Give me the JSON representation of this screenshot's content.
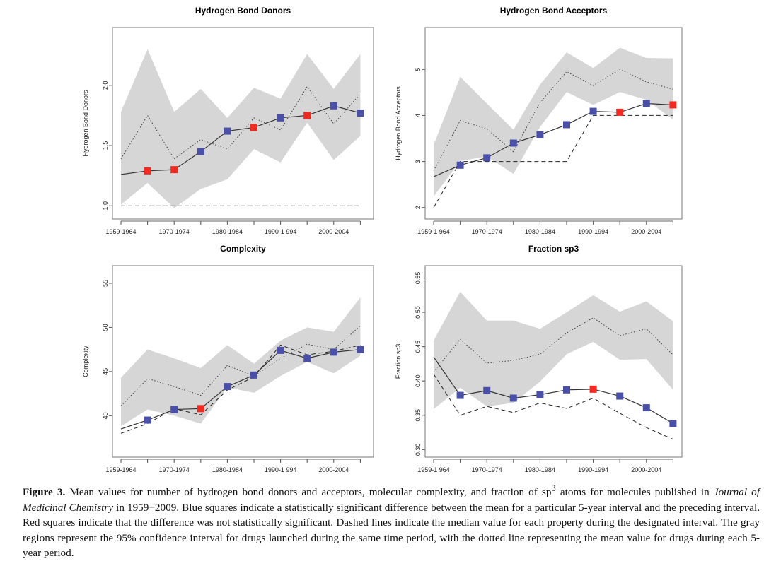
{
  "chart_data": [
    {
      "type": "line",
      "title": "Hydrogen Bond Donors",
      "ylabel": "Hydrogen Bond Donors",
      "x_tick_labels": [
        "1959-1964",
        "",
        "1970-1974",
        "",
        "1980-1984",
        "",
        "1990-1 994",
        "",
        "2000-2004",
        ""
      ],
      "y_ticks": [
        1.0,
        1.5,
        2.0
      ],
      "y_tick_labels": [
        "1.0",
        "1.5",
        "2.0"
      ],
      "ylim": [
        0.89,
        2.48
      ],
      "series": [
        {
          "role": "mean",
          "style": "solid",
          "values": [
            1.26,
            1.29,
            1.3,
            1.45,
            1.62,
            1.65,
            1.73,
            1.75,
            1.83,
            1.77
          ],
          "markers": [
            null,
            "red",
            "red",
            "blue",
            "blue",
            "red",
            "blue",
            "red",
            "blue",
            "blue"
          ]
        },
        {
          "role": "median",
          "style": "dashed",
          "values": [
            1.0,
            1.0,
            1.0,
            1.0,
            1.0,
            1.0,
            1.0,
            1.0,
            1.0,
            1.0
          ]
        },
        {
          "role": "drug-mean",
          "style": "dotted",
          "values": [
            1.39,
            1.75,
            1.39,
            1.55,
            1.47,
            1.73,
            1.63,
            1.99,
            1.68,
            1.93
          ]
        },
        {
          "role": "drug-ci",
          "style": "band",
          "upper": [
            1.78,
            2.3,
            1.78,
            1.97,
            1.73,
            1.98,
            1.89,
            2.26,
            1.97,
            2.26
          ],
          "lower": [
            1.01,
            1.19,
            0.98,
            1.14,
            1.22,
            1.47,
            1.36,
            1.69,
            1.38,
            1.58
          ]
        }
      ]
    },
    {
      "type": "line",
      "title": "Hydrogen Bond Acceptors",
      "ylabel": "Hydrogen Bond Acceptors",
      "x_tick_labels": [
        "1959-1 964",
        "",
        "1970-1974",
        "",
        "1980-1984",
        "",
        "1990-1994",
        "",
        "2000-2004",
        ""
      ],
      "y_ticks": [
        2,
        3,
        4,
        5
      ],
      "y_tick_labels": [
        "2",
        "3",
        "4",
        "5"
      ],
      "ylim": [
        1.75,
        5.91
      ],
      "series": [
        {
          "role": "mean",
          "style": "solid",
          "values": [
            2.67,
            2.92,
            3.08,
            3.4,
            3.58,
            3.8,
            4.09,
            4.07,
            4.26,
            4.23
          ],
          "markers": [
            null,
            "blue",
            "blue",
            "blue",
            "blue",
            "blue",
            "blue",
            "red",
            "blue",
            "red"
          ]
        },
        {
          "role": "median",
          "style": "dashed",
          "values": [
            2,
            3,
            3,
            3,
            3,
            3,
            4,
            4,
            4,
            4
          ]
        },
        {
          "role": "drug-mean",
          "style": "dotted",
          "values": [
            2.8,
            3.89,
            3.71,
            3.21,
            4.28,
            4.95,
            4.65,
            5.0,
            4.73,
            4.57
          ]
        },
        {
          "role": "drug-ci",
          "style": "band",
          "upper": [
            3.36,
            4.84,
            4.26,
            3.69,
            4.67,
            5.37,
            5.03,
            5.47,
            5.25,
            5.24
          ],
          "lower": [
            2.24,
            3.01,
            3.11,
            2.73,
            3.75,
            4.51,
            4.23,
            4.51,
            4.34,
            3.91
          ]
        }
      ]
    },
    {
      "type": "line",
      "title": "Complexity",
      "ylabel": "Complexity",
      "x_tick_labels": [
        "1959-1964",
        "",
        "1970-1974",
        "",
        "1980-1984",
        "",
        "1990-1 994",
        "",
        "2000-2004",
        ""
      ],
      "y_ticks": [
        40,
        45,
        50,
        55
      ],
      "y_tick_labels": [
        "40",
        "45",
        "50",
        "55"
      ],
      "ylim": [
        35.3,
        57.0
      ],
      "series": [
        {
          "role": "mean",
          "style": "solid",
          "values": [
            38.5,
            39.5,
            40.7,
            40.8,
            43.3,
            44.6,
            47.4,
            46.5,
            47.2,
            47.5
          ],
          "markers": [
            null,
            "blue",
            "blue",
            "red",
            "blue",
            "blue",
            "blue",
            "blue",
            "blue",
            "blue"
          ]
        },
        {
          "role": "median",
          "style": "dashed",
          "values": [
            38.0,
            39.1,
            40.8,
            40.1,
            42.9,
            44.4,
            48.0,
            46.9,
            47.3,
            48.0
          ]
        },
        {
          "role": "drug-mean",
          "style": "dotted",
          "values": [
            41.1,
            44.2,
            43.3,
            42.3,
            45.7,
            44.5,
            46.5,
            48.1,
            47.5,
            50.2
          ]
        },
        {
          "role": "drug-ci",
          "style": "band",
          "upper": [
            44.3,
            47.5,
            46.5,
            45.4,
            48.0,
            45.9,
            48.5,
            50.0,
            49.5,
            53.4
          ],
          "lower": [
            38.8,
            40.7,
            40.0,
            39.1,
            43.2,
            42.6,
            44.5,
            46.1,
            44.8,
            46.8
          ]
        }
      ]
    },
    {
      "type": "line",
      "title": "Fraction sp3",
      "ylabel": "Fraction sp3",
      "x_tick_labels": [
        "1959-1 964",
        "",
        "1970-1974",
        "",
        "1980-1984",
        "",
        "1990-1994",
        "",
        "2000-2004",
        ""
      ],
      "y_ticks": [
        0.3,
        0.35,
        0.4,
        0.45,
        0.5,
        0.55
      ],
      "y_tick_labels": [
        "0.30",
        "0.35",
        "0.40",
        "0.45",
        "0.50",
        "0.55"
      ],
      "ylim": [
        0.289,
        0.568
      ],
      "series": [
        {
          "role": "mean",
          "style": "solid",
          "values": [
            0.435,
            0.379,
            0.386,
            0.375,
            0.38,
            0.387,
            0.388,
            0.378,
            0.361,
            0.338
          ],
          "markers": [
            null,
            "blue",
            "blue",
            "blue",
            "blue",
            "blue",
            "red",
            "blue",
            "blue",
            "blue"
          ]
        },
        {
          "role": "median",
          "style": "dashed",
          "values": [
            0.41,
            0.35,
            0.363,
            0.354,
            0.368,
            0.36,
            0.375,
            0.353,
            0.332,
            0.315
          ]
        },
        {
          "role": "drug-mean",
          "style": "dotted",
          "values": [
            0.413,
            0.461,
            0.426,
            0.43,
            0.439,
            0.47,
            0.492,
            0.466,
            0.476,
            0.438
          ]
        },
        {
          "role": "drug-ci",
          "style": "band",
          "upper": [
            0.459,
            0.53,
            0.488,
            0.488,
            0.476,
            0.5,
            0.525,
            0.501,
            0.516,
            0.487
          ],
          "lower": [
            0.359,
            0.39,
            0.363,
            0.368,
            0.399,
            0.439,
            0.457,
            0.431,
            0.432,
            0.387
          ]
        }
      ]
    }
  ],
  "colors": {
    "blue": "#4a50a8",
    "red": "#ee2a22",
    "band": "#d6d6d6"
  },
  "caption": {
    "label": "Figure 3.",
    "t1": " Mean values for number of hydrogen bond donors and acceptors, molecular complexity, and fraction of sp",
    "sup": "3",
    "t2": " atoms for molecules published in ",
    "journal": "Journal of Medicinal Chemistry",
    "t3": " in 1959−2009. Blue squares indicate a statistically significant difference between the mean for a particular 5-year interval and the preceding interval. Red squares indicate that the difference was not statistically significant. Dashed lines indicate the median value for each property during the designated interval. The gray regions represent the 95% confidence interval for drugs launched during the same time period, with the dotted line representing the mean value for drugs during each 5-year period."
  }
}
